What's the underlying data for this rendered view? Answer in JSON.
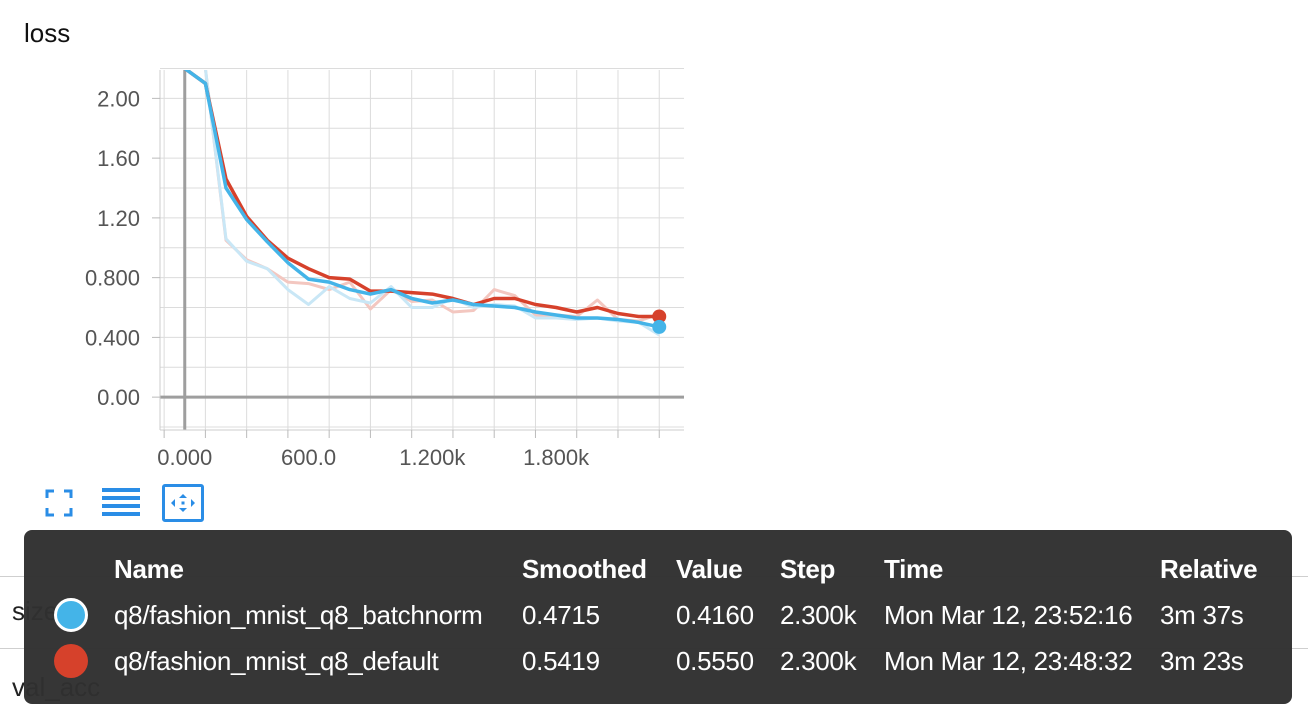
{
  "card": {
    "title": "loss"
  },
  "background_rows": [
    {
      "label": "size"
    },
    {
      "label": "val_acc"
    }
  ],
  "toolbar": {
    "buttons": [
      {
        "icon": "fullscreen-icon",
        "active": false
      },
      {
        "icon": "list-icon",
        "active": false
      },
      {
        "icon": "fit-domain-icon",
        "active": true
      }
    ]
  },
  "chart_data": {
    "type": "line",
    "title": "loss",
    "xlabel": "",
    "ylabel": "",
    "xlim": [
      -120,
      2420
    ],
    "ylim": [
      -0.22,
      2.19
    ],
    "x_ticks": [
      0,
      600,
      1200,
      1800
    ],
    "x_tick_labels": [
      "0.000",
      "600.0",
      "1.200k",
      "1.800k"
    ],
    "y_ticks": [
      0,
      0.4,
      0.8,
      1.2,
      1.6,
      2.0
    ],
    "y_tick_labels": [
      "0.00",
      "0.400",
      "0.800",
      "1.20",
      "1.60",
      "2.00"
    ],
    "grid": true,
    "series": [
      {
        "name": "q8/fashion_mnist_q8_default",
        "color": "#d6412b",
        "raw_color": "#f3c7c0",
        "smoothed": [
          [
            0,
            2.2
          ],
          [
            100,
            2.1
          ],
          [
            200,
            1.46
          ],
          [
            300,
            1.21
          ],
          [
            400,
            1.05
          ],
          [
            500,
            0.93
          ],
          [
            600,
            0.86
          ],
          [
            700,
            0.8
          ],
          [
            800,
            0.79
          ],
          [
            900,
            0.71
          ],
          [
            1000,
            0.71
          ],
          [
            1100,
            0.7
          ],
          [
            1200,
            0.69
          ],
          [
            1300,
            0.66
          ],
          [
            1400,
            0.62
          ],
          [
            1500,
            0.66
          ],
          [
            1600,
            0.66
          ],
          [
            1700,
            0.62
          ],
          [
            1800,
            0.6
          ],
          [
            1900,
            0.57
          ],
          [
            2000,
            0.6
          ],
          [
            2100,
            0.56
          ],
          [
            2200,
            0.54
          ],
          [
            2300,
            0.54
          ]
        ],
        "raw": [
          [
            100,
            2.2
          ],
          [
            200,
            1.05
          ],
          [
            300,
            0.92
          ],
          [
            400,
            0.86
          ],
          [
            500,
            0.77
          ],
          [
            600,
            0.76
          ],
          [
            700,
            0.72
          ],
          [
            800,
            0.77
          ],
          [
            900,
            0.59
          ],
          [
            1000,
            0.72
          ],
          [
            1100,
            0.64
          ],
          [
            1200,
            0.65
          ],
          [
            1300,
            0.57
          ],
          [
            1400,
            0.58
          ],
          [
            1500,
            0.72
          ],
          [
            1600,
            0.68
          ],
          [
            1700,
            0.55
          ],
          [
            1800,
            0.55
          ],
          [
            1900,
            0.54
          ],
          [
            2000,
            0.65
          ],
          [
            2100,
            0.52
          ],
          [
            2200,
            0.51
          ],
          [
            2300,
            0.555
          ]
        ]
      },
      {
        "name": "q8/fashion_mnist_q8_batchnorm",
        "color": "#44b4e8",
        "raw_color": "#c9e7f6",
        "smoothed": [
          [
            0,
            2.2
          ],
          [
            100,
            2.1
          ],
          [
            200,
            1.4
          ],
          [
            300,
            1.19
          ],
          [
            400,
            1.04
          ],
          [
            500,
            0.9
          ],
          [
            600,
            0.79
          ],
          [
            700,
            0.77
          ],
          [
            800,
            0.72
          ],
          [
            900,
            0.69
          ],
          [
            1000,
            0.72
          ],
          [
            1100,
            0.66
          ],
          [
            1200,
            0.63
          ],
          [
            1300,
            0.65
          ],
          [
            1400,
            0.62
          ],
          [
            1500,
            0.61
          ],
          [
            1600,
            0.6
          ],
          [
            1700,
            0.57
          ],
          [
            1800,
            0.55
          ],
          [
            1900,
            0.53
          ],
          [
            2000,
            0.53
          ],
          [
            2100,
            0.52
          ],
          [
            2200,
            0.5
          ],
          [
            2300,
            0.47
          ]
        ],
        "raw": [
          [
            100,
            2.2
          ],
          [
            200,
            1.06
          ],
          [
            300,
            0.91
          ],
          [
            400,
            0.86
          ],
          [
            500,
            0.72
          ],
          [
            600,
            0.62
          ],
          [
            700,
            0.74
          ],
          [
            800,
            0.66
          ],
          [
            900,
            0.63
          ],
          [
            1000,
            0.74
          ],
          [
            1100,
            0.6
          ],
          [
            1200,
            0.6
          ],
          [
            1300,
            0.66
          ],
          [
            1400,
            0.6
          ],
          [
            1500,
            0.62
          ],
          [
            1600,
            0.61
          ],
          [
            1700,
            0.53
          ],
          [
            1800,
            0.53
          ],
          [
            1900,
            0.52
          ],
          [
            2000,
            0.53
          ],
          [
            2100,
            0.51
          ],
          [
            2200,
            0.5
          ],
          [
            2300,
            0.416
          ]
        ]
      }
    ]
  },
  "tooltip": {
    "headers": {
      "name": "Name",
      "smoothed": "Smoothed",
      "value": "Value",
      "step": "Step",
      "time": "Time",
      "relative": "Relative"
    },
    "rows": [
      {
        "color": "#44b4e8",
        "selected": true,
        "name": "q8/fashion_mnist_q8_batchnorm",
        "smoothed": "0.4715",
        "value": "0.4160",
        "step": "2.300k",
        "time": "Mon Mar 12, 23:52:16",
        "relative": "3m 37s"
      },
      {
        "color": "#d6412b",
        "selected": false,
        "name": "q8/fashion_mnist_q8_default",
        "smoothed": "0.5419",
        "value": "0.5550",
        "step": "2.300k",
        "time": "Mon Mar 12, 23:48:32",
        "relative": "3m 23s"
      }
    ]
  }
}
